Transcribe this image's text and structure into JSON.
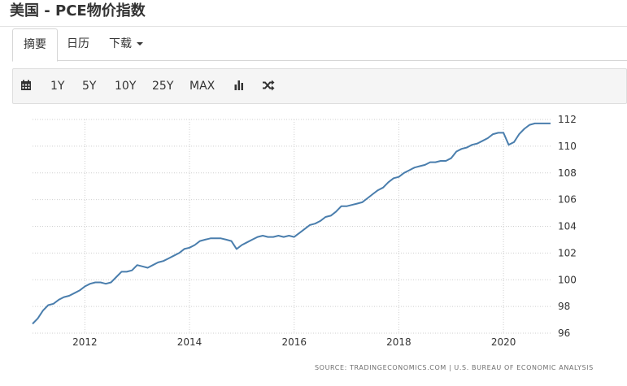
{
  "header": {
    "title": "美国 - PCE物价指数"
  },
  "tabs": [
    {
      "label": "摘要",
      "active": true
    },
    {
      "label": "日历",
      "active": false
    },
    {
      "label": "下载",
      "active": false,
      "has_dropdown": true
    }
  ],
  "toolbar": {
    "calendar_icon": "calendar-icon",
    "ranges": [
      "1Y",
      "5Y",
      "10Y",
      "25Y",
      "MAX"
    ],
    "bar_icon": "bar-chart-icon",
    "shuffle_icon": "shuffle-icon"
  },
  "chart_data": {
    "type": "line",
    "title": "",
    "xlabel": "",
    "ylabel": "",
    "x_ticks": [
      "2012",
      "2014",
      "2016",
      "2018",
      "2020"
    ],
    "y_ticks": [
      96,
      98,
      100,
      102,
      104,
      106,
      108,
      110,
      112
    ],
    "xlim": [
      2011.0,
      2020.9
    ],
    "ylim": [
      96,
      112
    ],
    "grid": true,
    "line_color": "#4a7ead",
    "series": [
      {
        "x": [
          2011.0,
          2011.1,
          2011.2,
          2011.3,
          2011.4,
          2011.5,
          2011.6,
          2011.7,
          2011.8,
          2011.9,
          2012.0,
          2012.1,
          2012.2,
          2012.3,
          2012.4,
          2012.5,
          2012.6,
          2012.7,
          2012.8,
          2012.9,
          2013.0,
          2013.1,
          2013.2,
          2013.3,
          2013.4,
          2013.5,
          2013.6,
          2013.7,
          2013.8,
          2013.9,
          2014.0,
          2014.1,
          2014.2,
          2014.3,
          2014.4,
          2014.5,
          2014.6,
          2014.7,
          2014.8,
          2014.9,
          2015.0,
          2015.1,
          2015.2,
          2015.3,
          2015.4,
          2015.5,
          2015.6,
          2015.7,
          2015.8,
          2015.9,
          2016.0,
          2016.1,
          2016.2,
          2016.3,
          2016.4,
          2016.5,
          2016.6,
          2016.7,
          2016.8,
          2016.9,
          2017.0,
          2017.1,
          2017.2,
          2017.3,
          2017.4,
          2017.5,
          2017.6,
          2017.7,
          2017.8,
          2017.9,
          2018.0,
          2018.1,
          2018.2,
          2018.3,
          2018.4,
          2018.5,
          2018.6,
          2018.7,
          2018.8,
          2018.9,
          2019.0,
          2019.1,
          2019.2,
          2019.3,
          2019.4,
          2019.5,
          2019.6,
          2019.7,
          2019.8,
          2019.9,
          2020.0,
          2020.1,
          2020.2,
          2020.3,
          2020.4,
          2020.5,
          2020.6,
          2020.7,
          2020.8,
          2020.9
        ],
        "y": [
          96.7,
          97.1,
          97.7,
          98.1,
          98.2,
          98.5,
          98.7,
          98.8,
          99.0,
          99.2,
          99.5,
          99.7,
          99.8,
          99.8,
          99.7,
          99.8,
          100.2,
          100.6,
          100.6,
          100.7,
          101.1,
          101.0,
          100.9,
          101.1,
          101.3,
          101.4,
          101.6,
          101.8,
          102.0,
          102.3,
          102.4,
          102.6,
          102.9,
          103.0,
          103.1,
          103.1,
          103.1,
          103.0,
          102.9,
          102.3,
          102.6,
          102.8,
          103.0,
          103.2,
          103.3,
          103.2,
          103.2,
          103.3,
          103.2,
          103.3,
          103.2,
          103.5,
          103.8,
          104.1,
          104.2,
          104.4,
          104.7,
          104.8,
          105.1,
          105.5,
          105.5,
          105.6,
          105.7,
          105.8,
          106.1,
          106.4,
          106.7,
          106.9,
          107.3,
          107.6,
          107.7,
          108.0,
          108.2,
          108.4,
          108.5,
          108.6,
          108.8,
          108.8,
          108.9,
          108.9,
          109.1,
          109.6,
          109.8,
          109.9,
          110.1,
          110.2,
          110.4,
          110.6,
          110.9,
          111.0,
          111.0,
          110.1,
          110.3,
          110.9,
          111.3,
          111.6,
          111.7,
          111.7,
          111.7,
          111.7
        ]
      }
    ],
    "source": "SOURCE: TRADINGECONOMICS.COM  |  U.S. BUREAU OF ECONOMIC ANALYSIS"
  }
}
